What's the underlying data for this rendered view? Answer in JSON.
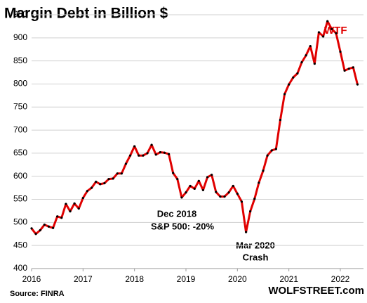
{
  "chart_data": {
    "type": "line",
    "title": "Margin Debt in Billion $",
    "annotations": [
      "WTF",
      "Dec 2018",
      "S&P 500:  -20%",
      "Mar 2020",
      "Crash"
    ],
    "source": "Source: FINRA",
    "watermark": "WOLFSTREET.com",
    "x": [
      2016,
      2016.083,
      2016.167,
      2016.25,
      2016.333,
      2016.417,
      2016.5,
      2016.583,
      2016.667,
      2016.75,
      2016.833,
      2016.917,
      2017,
      2017.083,
      2017.167,
      2017.25,
      2017.333,
      2017.417,
      2017.5,
      2017.583,
      2017.667,
      2017.75,
      2017.833,
      2017.917,
      2018,
      2018.083,
      2018.167,
      2018.25,
      2018.333,
      2018.417,
      2018.5,
      2018.583,
      2018.667,
      2018.75,
      2018.833,
      2018.917,
      2019,
      2019.083,
      2019.167,
      2019.25,
      2019.333,
      2019.417,
      2019.5,
      2019.583,
      2019.667,
      2019.75,
      2019.833,
      2019.917,
      2020,
      2020.083,
      2020.167,
      2020.25,
      2020.333,
      2020.417,
      2020.5,
      2020.583,
      2020.667,
      2020.75,
      2020.833,
      2020.917,
      2021,
      2021.083,
      2021.167,
      2021.25,
      2021.333,
      2021.417,
      2021.5,
      2021.583,
      2021.667,
      2021.75,
      2021.833,
      2021.917,
      2022,
      2022.083,
      2022.167,
      2022.25,
      2022.333
    ],
    "series": [
      {
        "name": "Margin Debt",
        "color": "#e00000",
        "marker_color": "#000000",
        "values": [
          487,
          475,
          483,
          495,
          491,
          488,
          513,
          510,
          540,
          524,
          541,
          530,
          553,
          568,
          575,
          588,
          583,
          585,
          594,
          595,
          606,
          606,
          627,
          645,
          665,
          645,
          645,
          650,
          668,
          647,
          652,
          651,
          648,
          607,
          594,
          554,
          565,
          579,
          573,
          590,
          570,
          598,
          603,
          566,
          556,
          556,
          565,
          579,
          562,
          545,
          479,
          524,
          551,
          586,
          612,
          645,
          656,
          659,
          722,
          778,
          799,
          814,
          823,
          847,
          862,
          882,
          844,
          912,
          903,
          936,
          919,
          910,
          870,
          829,
          833,
          836,
          799
        ]
      }
    ],
    "xlim": [
      2016,
      2022.45
    ],
    "xticks": [
      2016,
      2017,
      2018,
      2019,
      2020,
      2021,
      2022
    ],
    "ylim": [
      400,
      950
    ],
    "yticks": [
      400,
      450,
      500,
      550,
      600,
      650,
      700,
      750,
      800,
      850,
      900,
      950
    ],
    "grid": true
  }
}
